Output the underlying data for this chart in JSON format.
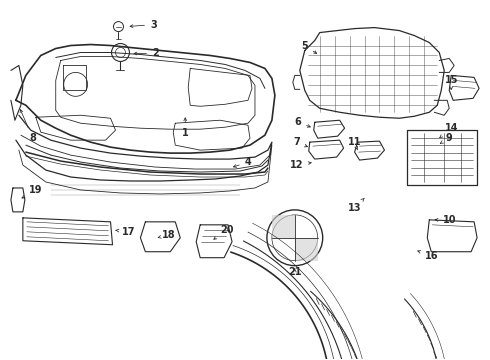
{
  "bg_color": "#ffffff",
  "fig_width": 4.9,
  "fig_height": 3.6,
  "dpi": 100,
  "lc": "#2a2a2a",
  "lw": 0.7
}
